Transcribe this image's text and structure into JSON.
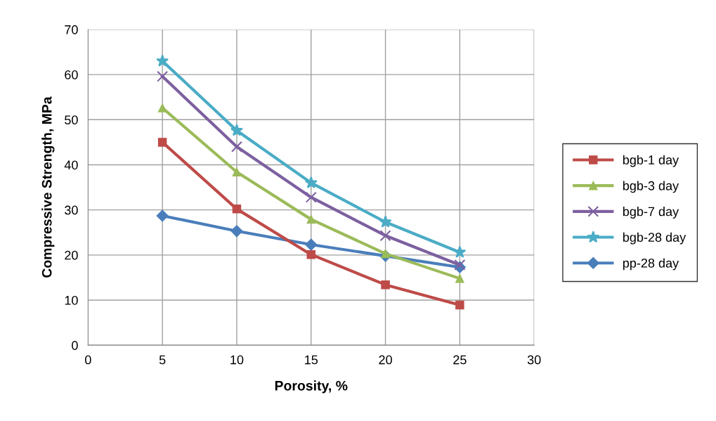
{
  "chart_data": {
    "type": "line",
    "xlabel": "Porosity, %",
    "ylabel": "Compressive Strength, MPa",
    "xlim": [
      0,
      30
    ],
    "xticks": [
      0,
      5,
      10,
      15,
      20,
      25,
      30
    ],
    "ylim": [
      0,
      70
    ],
    "yticks": [
      0,
      10,
      20,
      30,
      40,
      50,
      60,
      70
    ],
    "grid": true,
    "legend": "right",
    "line_style": "solid",
    "series": [
      {
        "name": "bgb-1 day",
        "color": "#be4b48",
        "marker": "square",
        "x": [
          5,
          10,
          15,
          20,
          25
        ],
        "values": [
          45,
          30.2,
          20.1,
          13.4,
          8.9
        ]
      },
      {
        "name": "bgb-3 day",
        "color": "#9bbb59",
        "marker": "triangle",
        "x": [
          5,
          10,
          15,
          20,
          25
        ],
        "values": [
          52.6,
          38.4,
          27.9,
          20.3,
          14.8
        ]
      },
      {
        "name": "bgb-7 day",
        "color": "#7d60a0",
        "marker": "cross",
        "x": [
          5,
          10,
          15,
          20,
          25
        ],
        "values": [
          59.6,
          44,
          32.8,
          24.3,
          17.8
        ]
      },
      {
        "name": "bgb-28 day",
        "color": "#4bacc6",
        "marker": "star",
        "x": [
          5,
          10,
          15,
          20,
          25
        ],
        "values": [
          63,
          47.6,
          36,
          27.3,
          20.6
        ]
      },
      {
        "name": "pp-28 day",
        "color": "#4a7ebb",
        "marker": "diamond",
        "x": [
          5,
          10,
          15,
          20,
          25
        ],
        "values": [
          28.7,
          25.3,
          22.3,
          19.8,
          17.3
        ]
      }
    ]
  }
}
